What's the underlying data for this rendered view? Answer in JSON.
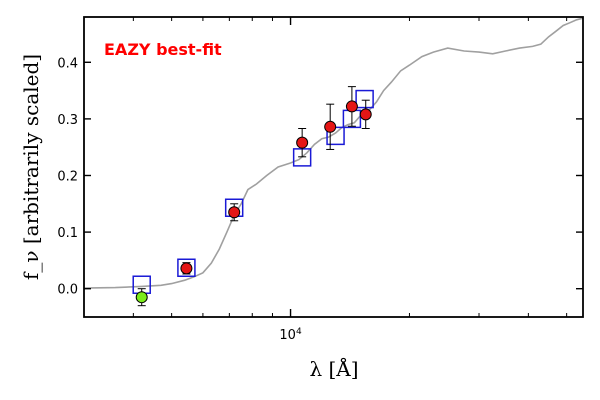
{
  "chart_data": {
    "type": "scatter",
    "title": "EAZY best-fit",
    "xlabel": "λ [Å]",
    "ylabel": "f_ν [arbitrarily scaled]",
    "xscale": "log",
    "xlim": [
      3000,
      55000
    ],
    "ylim": [
      -0.05,
      0.48
    ],
    "yticks": [
      "0.0",
      "0.1",
      "0.2",
      "0.3",
      "0.4"
    ],
    "xticks": [
      {
        "value": 10000,
        "label_base": "10",
        "label_exp": "4"
      }
    ],
    "colors": {
      "template": "#a0a0a0",
      "model_box": "#1a1ad6",
      "detected": "#e51616",
      "limit": "#7cec1c",
      "title": "#ff0000"
    },
    "series": [
      {
        "name": "template SED",
        "style": "line",
        "points": [
          [
            3000,
            0.001
          ],
          [
            3600,
            0.002
          ],
          [
            4200,
            0.004
          ],
          [
            4700,
            0.006
          ],
          [
            5000,
            0.009
          ],
          [
            5400,
            0.015
          ],
          [
            5700,
            0.021
          ],
          [
            6000,
            0.028
          ],
          [
            6300,
            0.045
          ],
          [
            6600,
            0.07
          ],
          [
            6900,
            0.1
          ],
          [
            7200,
            0.13
          ],
          [
            7500,
            0.15
          ],
          [
            7800,
            0.175
          ],
          [
            8200,
            0.185
          ],
          [
            8700,
            0.2
          ],
          [
            9300,
            0.215
          ],
          [
            10000,
            0.222
          ],
          [
            10500,
            0.228
          ],
          [
            11000,
            0.24
          ],
          [
            11500,
            0.255
          ],
          [
            12000,
            0.265
          ],
          [
            12500,
            0.268
          ],
          [
            13000,
            0.275
          ],
          [
            13500,
            0.285
          ],
          [
            14000,
            0.29
          ],
          [
            14500,
            0.293
          ],
          [
            15000,
            0.305
          ],
          [
            15800,
            0.315
          ],
          [
            16500,
            0.33
          ],
          [
            17200,
            0.35
          ],
          [
            18000,
            0.365
          ],
          [
            19000,
            0.385
          ],
          [
            20000,
            0.395
          ],
          [
            21500,
            0.41
          ],
          [
            23000,
            0.418
          ],
          [
            25000,
            0.425
          ],
          [
            27500,
            0.42
          ],
          [
            30000,
            0.418
          ],
          [
            32500,
            0.415
          ],
          [
            35000,
            0.42
          ],
          [
            38000,
            0.425
          ],
          [
            41000,
            0.428
          ],
          [
            43000,
            0.432
          ],
          [
            45000,
            0.445
          ],
          [
            47000,
            0.455
          ],
          [
            49000,
            0.465
          ],
          [
            51000,
            0.47
          ],
          [
            53000,
            0.475
          ],
          [
            55000,
            0.478
          ]
        ]
      },
      {
        "name": "model fluxes",
        "style": "open-square",
        "points": [
          [
            4200,
            0.007
          ],
          [
            5450,
            0.037
          ],
          [
            7200,
            0.143
          ],
          [
            10700,
            0.232
          ],
          [
            13000,
            0.27
          ],
          [
            14300,
            0.3
          ],
          [
            15400,
            0.335
          ]
        ]
      },
      {
        "name": "observed",
        "style": "filled-circle",
        "points": [
          {
            "x": 5450,
            "y": 0.036,
            "err": 0.01
          },
          {
            "x": 7200,
            "y": 0.135,
            "err": 0.015
          },
          {
            "x": 10700,
            "y": 0.258,
            "err": 0.025
          },
          {
            "x": 12600,
            "y": 0.286,
            "err": 0.04
          },
          {
            "x": 14300,
            "y": 0.322,
            "err": 0.035
          },
          {
            "x": 15500,
            "y": 0.308,
            "err": 0.025
          }
        ]
      },
      {
        "name": "non-detection",
        "style": "filled-circle",
        "points": [
          {
            "x": 4200,
            "y": -0.015,
            "err": 0.015
          }
        ]
      }
    ]
  }
}
